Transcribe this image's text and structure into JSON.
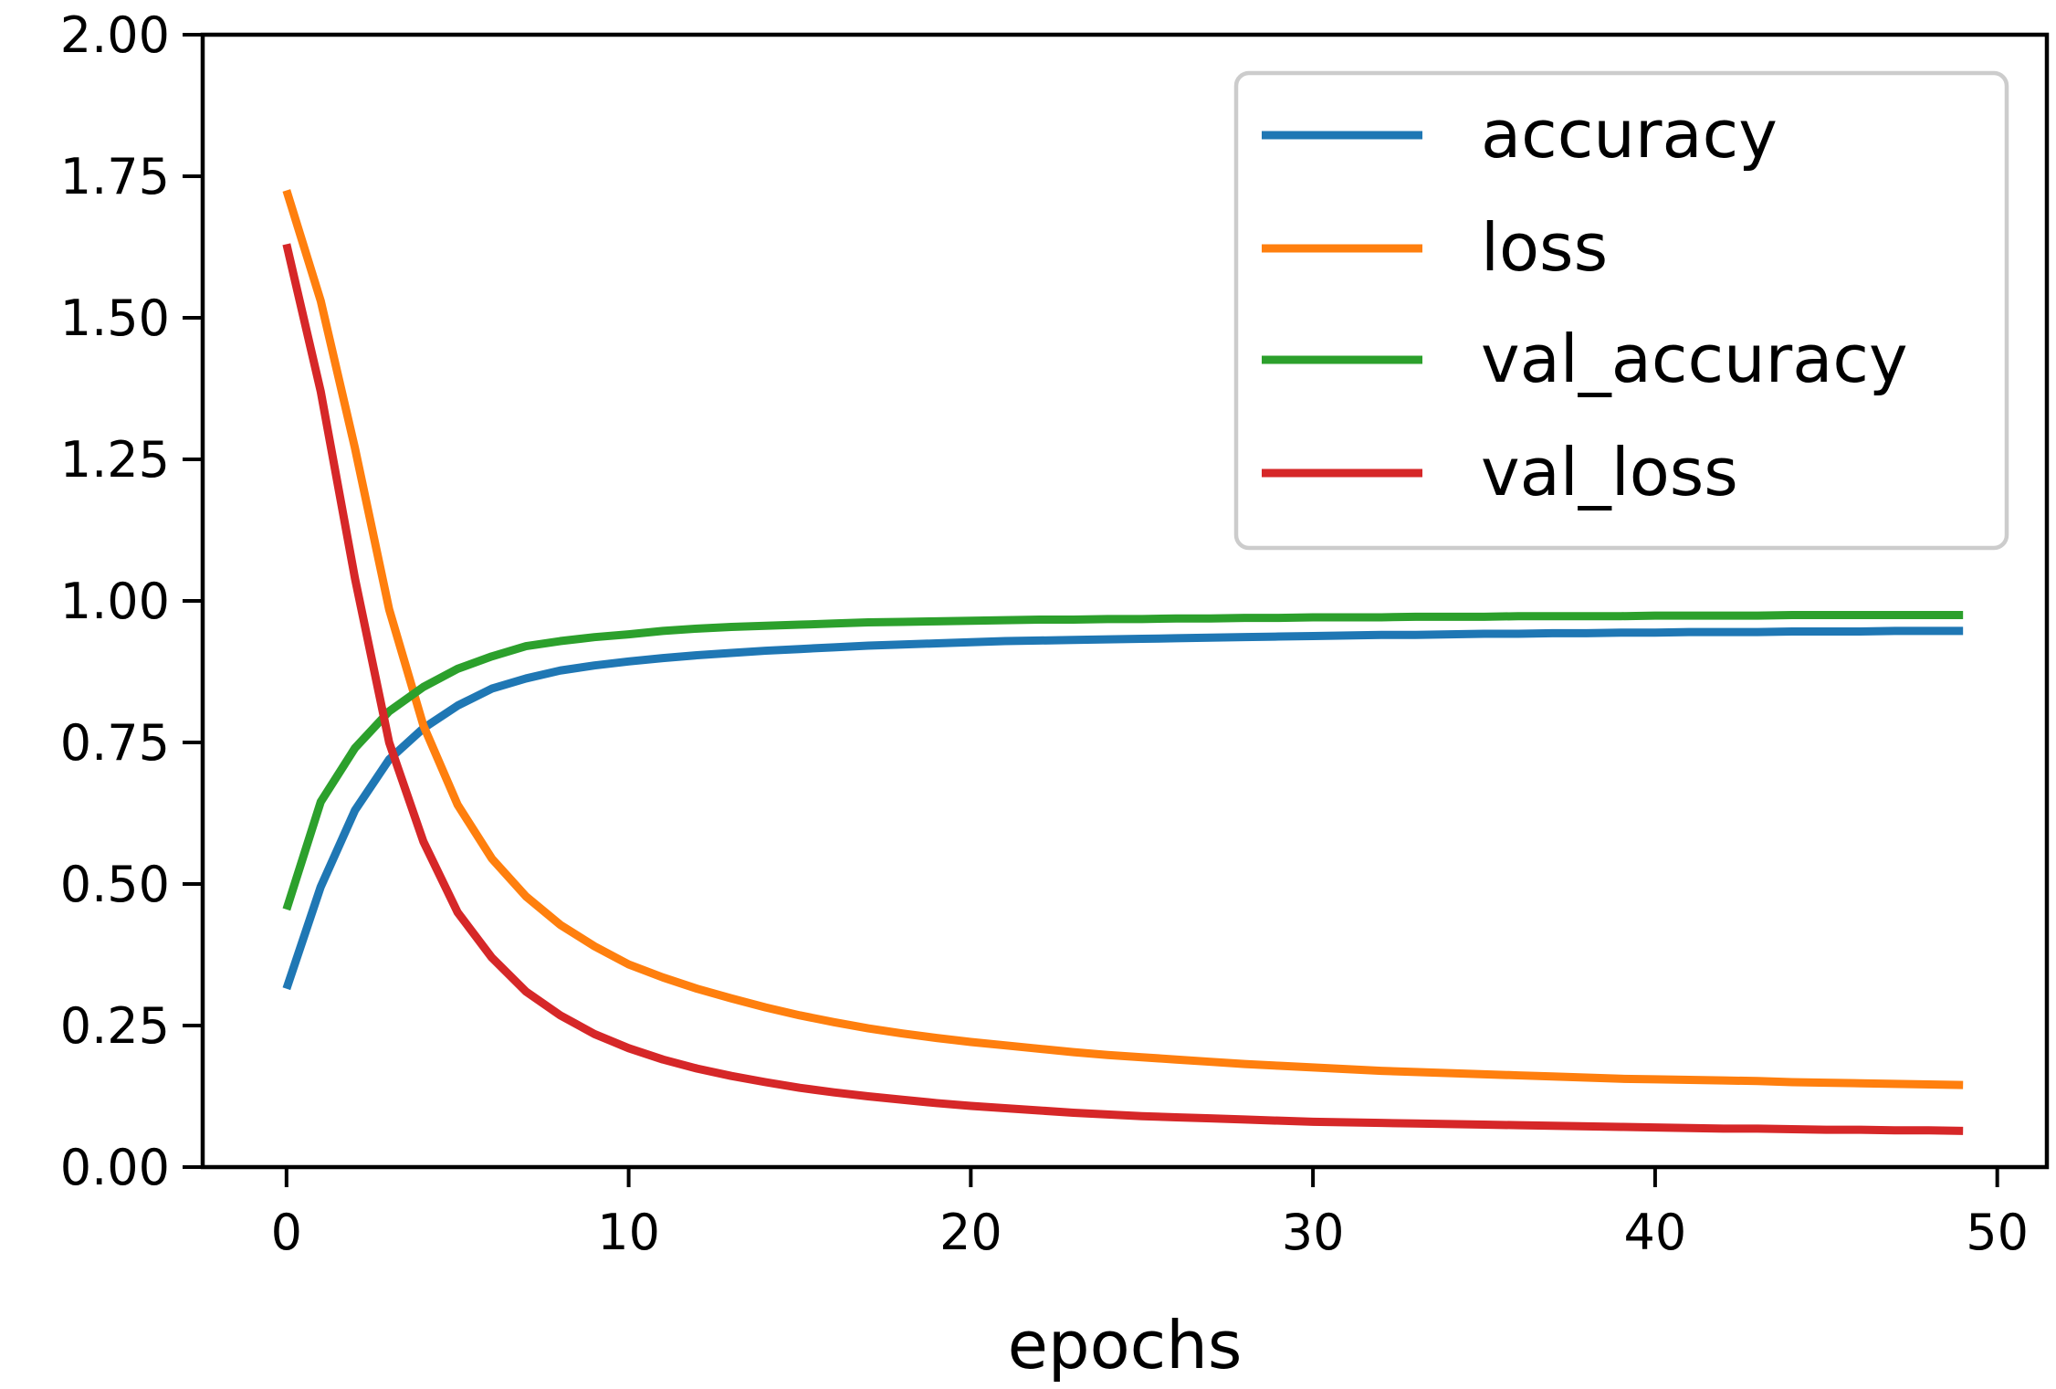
{
  "chart_data": {
    "type": "line",
    "title": "",
    "xlabel": "epochs",
    "ylabel": "",
    "xlim": [
      -2.45,
      51.45
    ],
    "ylim": [
      0,
      2
    ],
    "xticks": [
      0,
      10,
      20,
      30,
      40,
      50
    ],
    "xtick_labels": [
      "0",
      "10",
      "20",
      "30",
      "40",
      "50"
    ],
    "yticks": [
      0,
      0.25,
      0.5,
      0.75,
      1.0,
      1.25,
      1.5,
      1.75,
      2.0
    ],
    "ytick_labels": [
      "0.00",
      "0.25",
      "0.50",
      "0.75",
      "1.00",
      "1.25",
      "1.50",
      "1.75",
      "2.00"
    ],
    "grid": false,
    "legend_position": "top-right",
    "series": [
      {
        "name": "accuracy",
        "color": "#1f77b4",
        "x": [
          0,
          1,
          2,
          3,
          4,
          5,
          6,
          7,
          8,
          9,
          10,
          11,
          12,
          13,
          14,
          15,
          16,
          17,
          18,
          19,
          20,
          21,
          22,
          23,
          24,
          25,
          26,
          27,
          28,
          29,
          30,
          31,
          32,
          33,
          34,
          35,
          36,
          37,
          38,
          39,
          40,
          41,
          42,
          43,
          44,
          45,
          46,
          47,
          48,
          49
        ],
        "values": [
          0.315,
          0.495,
          0.63,
          0.72,
          0.775,
          0.815,
          0.845,
          0.863,
          0.877,
          0.886,
          0.893,
          0.899,
          0.904,
          0.908,
          0.912,
          0.915,
          0.918,
          0.921,
          0.923,
          0.925,
          0.927,
          0.929,
          0.93,
          0.931,
          0.932,
          0.933,
          0.934,
          0.935,
          0.936,
          0.937,
          0.938,
          0.939,
          0.94,
          0.94,
          0.941,
          0.942,
          0.942,
          0.943,
          0.943,
          0.944,
          0.944,
          0.945,
          0.945,
          0.945,
          0.946,
          0.946,
          0.946,
          0.947,
          0.947,
          0.947
        ]
      },
      {
        "name": "loss",
        "color": "#ff7f0e",
        "x": [
          0,
          1,
          2,
          3,
          4,
          5,
          6,
          7,
          8,
          9,
          10,
          11,
          12,
          13,
          14,
          15,
          16,
          17,
          18,
          19,
          20,
          21,
          22,
          23,
          24,
          25,
          26,
          27,
          28,
          29,
          30,
          31,
          32,
          33,
          34,
          35,
          36,
          37,
          38,
          39,
          40,
          41,
          42,
          43,
          44,
          45,
          46,
          47,
          48,
          49
        ],
        "values": [
          1.725,
          1.53,
          1.27,
          0.985,
          0.78,
          0.64,
          0.545,
          0.478,
          0.428,
          0.39,
          0.358,
          0.335,
          0.315,
          0.298,
          0.282,
          0.268,
          0.256,
          0.245,
          0.236,
          0.228,
          0.221,
          0.215,
          0.209,
          0.203,
          0.198,
          0.194,
          0.19,
          0.186,
          0.182,
          0.179,
          0.176,
          0.173,
          0.17,
          0.168,
          0.166,
          0.164,
          0.162,
          0.16,
          0.158,
          0.156,
          0.155,
          0.154,
          0.153,
          0.152,
          0.15,
          0.149,
          0.148,
          0.147,
          0.146,
          0.145
        ]
      },
      {
        "name": "val_accuracy",
        "color": "#2ca02c",
        "x": [
          0,
          1,
          2,
          3,
          4,
          5,
          6,
          7,
          8,
          9,
          10,
          11,
          12,
          13,
          14,
          15,
          16,
          17,
          18,
          19,
          20,
          21,
          22,
          23,
          24,
          25,
          26,
          27,
          28,
          29,
          30,
          31,
          32,
          33,
          34,
          35,
          36,
          37,
          38,
          39,
          40,
          41,
          42,
          43,
          44,
          45,
          46,
          47,
          48,
          49
        ],
        "values": [
          0.455,
          0.645,
          0.74,
          0.805,
          0.848,
          0.88,
          0.902,
          0.92,
          0.929,
          0.936,
          0.941,
          0.947,
          0.951,
          0.954,
          0.956,
          0.958,
          0.96,
          0.962,
          0.963,
          0.964,
          0.965,
          0.966,
          0.967,
          0.967,
          0.968,
          0.968,
          0.969,
          0.969,
          0.97,
          0.97,
          0.971,
          0.971,
          0.971,
          0.972,
          0.972,
          0.972,
          0.973,
          0.973,
          0.973,
          0.973,
          0.974,
          0.974,
          0.974,
          0.974,
          0.975,
          0.975,
          0.975,
          0.975,
          0.975,
          0.975
        ]
      },
      {
        "name": "val_loss",
        "color": "#d62728",
        "x": [
          0,
          1,
          2,
          3,
          4,
          5,
          6,
          7,
          8,
          9,
          10,
          11,
          12,
          13,
          14,
          15,
          16,
          17,
          18,
          19,
          20,
          21,
          22,
          23,
          24,
          25,
          26,
          27,
          28,
          29,
          30,
          31,
          32,
          33,
          34,
          35,
          36,
          37,
          38,
          39,
          40,
          41,
          42,
          43,
          44,
          45,
          46,
          47,
          48,
          49
        ],
        "values": [
          1.63,
          1.37,
          1.04,
          0.75,
          0.575,
          0.45,
          0.37,
          0.31,
          0.268,
          0.235,
          0.21,
          0.19,
          0.174,
          0.161,
          0.15,
          0.14,
          0.132,
          0.125,
          0.119,
          0.113,
          0.108,
          0.104,
          0.1,
          0.096,
          0.093,
          0.09,
          0.088,
          0.086,
          0.084,
          0.082,
          0.08,
          0.079,
          0.078,
          0.077,
          0.076,
          0.075,
          0.074,
          0.073,
          0.072,
          0.071,
          0.07,
          0.069,
          0.068,
          0.068,
          0.067,
          0.066,
          0.066,
          0.065,
          0.065,
          0.064
        ]
      }
    ]
  }
}
